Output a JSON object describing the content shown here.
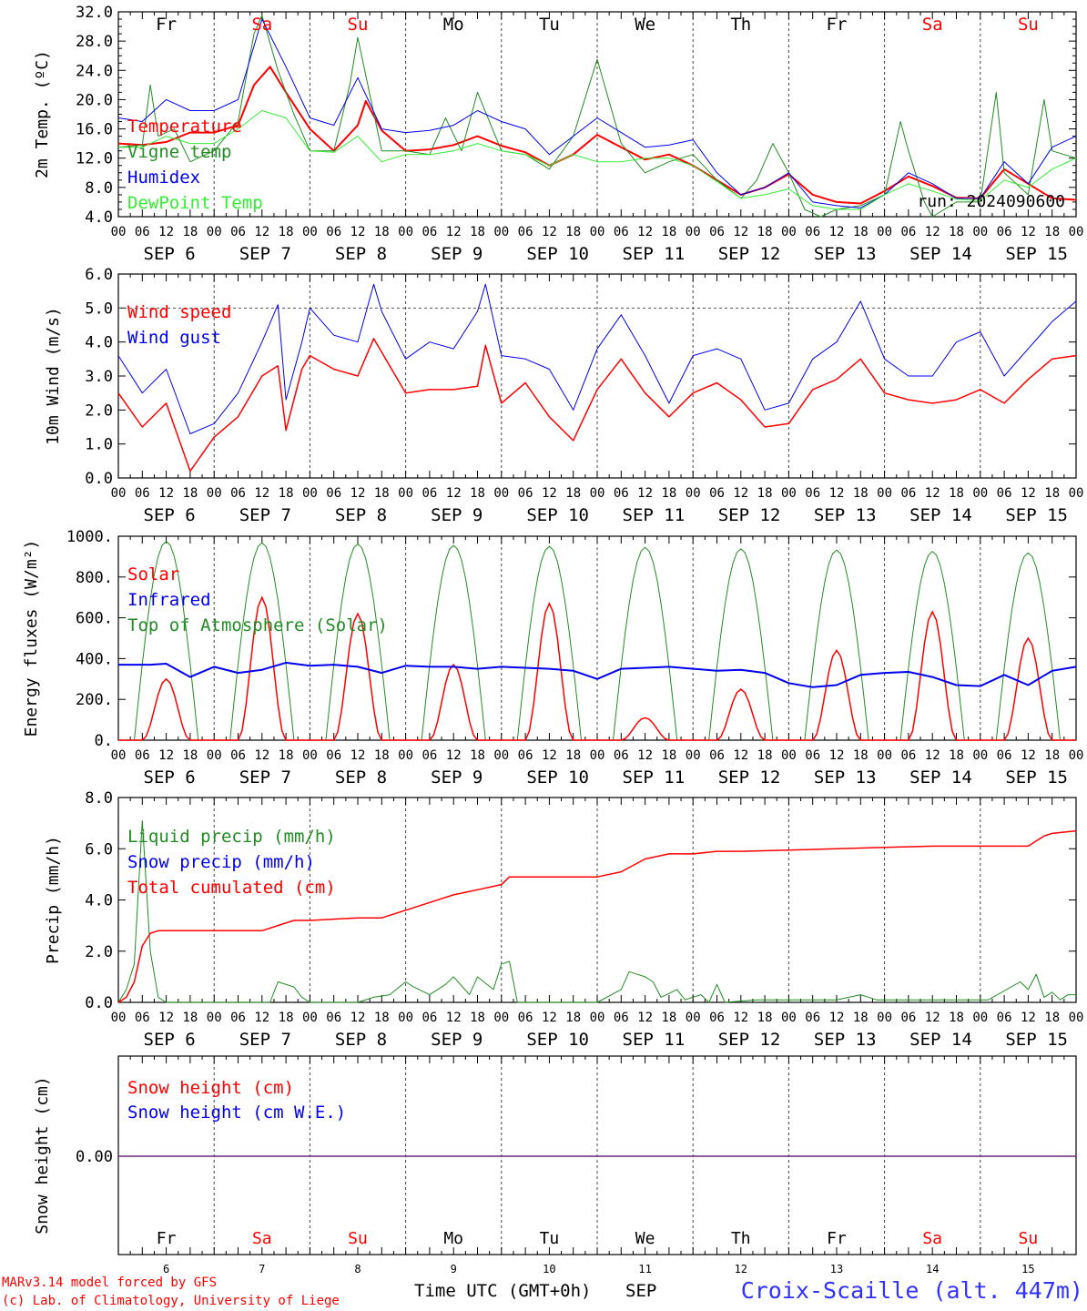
{
  "colors": {
    "red": "#ff0000",
    "green": "#228b22",
    "blue": "#0000ee",
    "lightgreen": "#33ee33",
    "purple": "#6a2a7a",
    "weekend": "#ff0000",
    "weekday": "#000000",
    "station": "#3030ff"
  },
  "days": [
    {
      "name": "Fr",
      "date": "SEP  6",
      "num": "6",
      "weekend": false
    },
    {
      "name": "Sa",
      "date": "SEP  7",
      "num": "7",
      "weekend": true
    },
    {
      "name": "Su",
      "date": "SEP  8",
      "num": "8",
      "weekend": true
    },
    {
      "name": "Mo",
      "date": "SEP  9",
      "num": "9",
      "weekend": false
    },
    {
      "name": "Tu",
      "date": "SEP 10",
      "num": "10",
      "weekend": false
    },
    {
      "name": "We",
      "date": "SEP 11",
      "num": "11",
      "weekend": false
    },
    {
      "name": "Th",
      "date": "SEP 12",
      "num": "12",
      "weekend": false
    },
    {
      "name": "Fr",
      "date": "SEP 13",
      "num": "13",
      "weekend": false
    },
    {
      "name": "Sa",
      "date": "SEP 14",
      "num": "14",
      "weekend": true
    },
    {
      "name": "Su",
      "date": "SEP 15",
      "num": "15",
      "weekend": true
    }
  ],
  "hour_ticks": [
    "00",
    "06",
    "12",
    "18"
  ],
  "footer": {
    "credit1": "MARv3.14 model forced by GFS",
    "credit2": "(c) Lab. of Climatology, University of Liege",
    "xlabel": "Time UTC (GMT+0h)",
    "month": "SEP",
    "station": "Croix-Scaille (alt. 447m)"
  },
  "chart_data": [
    {
      "type": "line",
      "id": "temp",
      "ylabel": "2m Temp. (ºC)",
      "ylim": [
        4,
        32
      ],
      "yticks": [
        4,
        8,
        12,
        16,
        20,
        24,
        28,
        32
      ],
      "ytick_labels": [
        "4.0",
        "8.0",
        "12.0",
        "16.0",
        "20.0",
        "24.0",
        "28.0",
        "32.0"
      ],
      "x_unit": "hours since 2024-09-06 00 UTC",
      "annotation": "run: 2024090600",
      "legend": [
        "Temperature",
        "Vigne temp",
        "Humidex",
        "DewPoint Temp"
      ],
      "series": [
        {
          "name": "Temperature",
          "color": "red",
          "width": 2,
          "x": [
            0,
            6,
            12,
            18,
            24,
            30,
            34,
            38,
            42,
            48,
            54,
            60,
            62,
            66,
            72,
            78,
            84,
            90,
            96,
            102,
            108,
            114,
            120,
            126,
            132,
            138,
            144,
            150,
            156,
            162,
            168,
            174,
            180,
            186,
            192,
            198,
            204,
            210,
            216,
            222,
            228,
            234,
            240
          ],
          "y": [
            14.0,
            13.8,
            14.2,
            15.5,
            15.5,
            16.5,
            22.0,
            24.5,
            21.0,
            16.0,
            13.0,
            16.5,
            19.8,
            15.8,
            13.0,
            13.2,
            13.8,
            15.0,
            13.7,
            12.8,
            11.0,
            12.5,
            15.2,
            13.5,
            11.8,
            12.5,
            11.0,
            9.0,
            7.0,
            8.0,
            9.8,
            7.0,
            6.0,
            5.8,
            7.5,
            9.5,
            8.2,
            6.6,
            6.5,
            10.5,
            8.5,
            6.5,
            6.3
          ]
        },
        {
          "name": "Vigne temp",
          "color": "green",
          "width": 1,
          "x": [
            0,
            6,
            8,
            10,
            14,
            18,
            24,
            30,
            34,
            36,
            40,
            44,
            48,
            54,
            58,
            60,
            66,
            72,
            78,
            82,
            86,
            90,
            96,
            102,
            108,
            114,
            120,
            126,
            132,
            138,
            144,
            150,
            156,
            160,
            164,
            168,
            172,
            176,
            180,
            186,
            192,
            196,
            198,
            202,
            204,
            210,
            216,
            220,
            222,
            228,
            232,
            234,
            240
          ],
          "y": [
            13.5,
            13.8,
            22.0,
            15.0,
            16.0,
            11.5,
            13.0,
            17.0,
            29.0,
            31.5,
            24.0,
            18.0,
            13.0,
            13.0,
            22.0,
            28.5,
            13.0,
            13.0,
            12.5,
            17.5,
            13.0,
            21.0,
            13.0,
            12.5,
            10.5,
            15.0,
            25.5,
            14.0,
            10.0,
            11.5,
            12.5,
            9.0,
            6.5,
            9.0,
            14.0,
            10.0,
            5.0,
            4.0,
            5.0,
            5.5,
            7.0,
            17.0,
            13.0,
            6.0,
            4.0,
            6.0,
            6.0,
            21.0,
            10.0,
            7.0,
            20.0,
            13.0,
            12.0
          ]
        },
        {
          "name": "Humidex",
          "color": "blue",
          "width": 1,
          "x": [
            0,
            6,
            12,
            18,
            24,
            30,
            36,
            42,
            48,
            54,
            60,
            66,
            72,
            78,
            84,
            90,
            96,
            102,
            108,
            114,
            120,
            126,
            132,
            138,
            144,
            150,
            156,
            162,
            168,
            174,
            180,
            186,
            192,
            198,
            204,
            210,
            216,
            222,
            228,
            234,
            240
          ],
          "y": [
            17.5,
            17.0,
            20.0,
            18.5,
            18.5,
            20.0,
            31.0,
            24.5,
            17.5,
            16.5,
            23.0,
            16.0,
            15.5,
            15.8,
            16.5,
            18.5,
            17.0,
            16.0,
            12.5,
            15.0,
            17.5,
            15.5,
            13.5,
            13.8,
            14.5,
            10.0,
            7.0,
            8.0,
            10.0,
            6.0,
            5.5,
            5.2,
            7.0,
            10.0,
            8.5,
            6.5,
            6.5,
            11.5,
            8.5,
            13.5,
            15.0
          ]
        },
        {
          "name": "DewPoint Temp",
          "color": "lightgreen",
          "width": 1,
          "x": [
            0,
            6,
            12,
            18,
            24,
            30,
            36,
            42,
            48,
            54,
            60,
            66,
            72,
            78,
            84,
            90,
            96,
            102,
            108,
            114,
            120,
            126,
            132,
            138,
            144,
            150,
            156,
            162,
            168,
            174,
            180,
            186,
            192,
            198,
            204,
            210,
            216,
            222,
            228,
            234,
            240
          ],
          "y": [
            13.5,
            13.5,
            15.0,
            14.0,
            14.0,
            16.0,
            18.5,
            17.5,
            13.0,
            12.8,
            15.0,
            11.5,
            12.5,
            12.5,
            13.0,
            14.0,
            13.0,
            12.5,
            11.0,
            12.5,
            11.5,
            11.5,
            12.0,
            12.0,
            11.0,
            8.8,
            6.5,
            7.0,
            7.8,
            5.5,
            5.0,
            5.0,
            7.0,
            8.5,
            7.5,
            6.4,
            6.2,
            9.0,
            8.0,
            10.5,
            12.0
          ]
        }
      ]
    },
    {
      "type": "line",
      "id": "wind",
      "ylabel": "10m Wind (m/s)",
      "ylim": [
        0,
        6
      ],
      "yticks": [
        0,
        1,
        2,
        3,
        4,
        5,
        6
      ],
      "ytick_labels": [
        "0.0",
        "1.0",
        "2.0",
        "3.0",
        "4.0",
        "5.0",
        "6.0"
      ],
      "reference_line": 5.0,
      "legend": [
        "Wind speed",
        "Wind gust"
      ],
      "series": [
        {
          "name": "Wind speed",
          "color": "red",
          "width": 1.5,
          "x": [
            0,
            6,
            12,
            18,
            24,
            30,
            36,
            40,
            42,
            46,
            48,
            54,
            60,
            64,
            66,
            72,
            78,
            84,
            90,
            92,
            96,
            102,
            108,
            114,
            120,
            126,
            132,
            138,
            144,
            150,
            156,
            162,
            168,
            174,
            180,
            186,
            192,
            198,
            204,
            210,
            216,
            222,
            228,
            234,
            240
          ],
          "y": [
            2.5,
            1.5,
            2.2,
            0.2,
            1.2,
            1.8,
            3.0,
            3.3,
            1.4,
            3.2,
            3.6,
            3.2,
            3.0,
            4.1,
            3.7,
            2.5,
            2.6,
            2.6,
            2.7,
            3.9,
            2.2,
            2.8,
            1.8,
            1.1,
            2.6,
            3.5,
            2.5,
            1.8,
            2.5,
            2.8,
            2.3,
            1.5,
            1.6,
            2.6,
            2.9,
            3.5,
            2.5,
            2.3,
            2.2,
            2.3,
            2.6,
            2.2,
            2.9,
            3.5,
            3.6
          ]
        },
        {
          "name": "Wind gust",
          "color": "blue",
          "width": 1,
          "x": [
            0,
            6,
            12,
            18,
            24,
            30,
            36,
            40,
            42,
            46,
            48,
            54,
            60,
            64,
            66,
            72,
            78,
            84,
            90,
            92,
            96,
            102,
            108,
            114,
            120,
            126,
            132,
            138,
            144,
            150,
            156,
            162,
            168,
            174,
            180,
            186,
            192,
            198,
            204,
            210,
            216,
            222,
            228,
            234,
            240
          ],
          "y": [
            3.6,
            2.5,
            3.2,
            1.3,
            1.6,
            2.5,
            4.0,
            5.1,
            2.3,
            4.0,
            5.0,
            4.2,
            4.0,
            5.7,
            4.9,
            3.5,
            4.0,
            3.8,
            4.9,
            5.7,
            3.6,
            3.5,
            3.2,
            2.0,
            3.8,
            4.8,
            3.6,
            2.2,
            3.6,
            3.8,
            3.5,
            2.0,
            2.2,
            3.5,
            4.0,
            5.2,
            3.5,
            3.0,
            3.0,
            4.0,
            4.3,
            3.0,
            3.8,
            4.6,
            5.2
          ]
        }
      ]
    },
    {
      "type": "line",
      "id": "energy",
      "ylabel": "Energy fluxes (W/m²)",
      "ylim": [
        0,
        1000
      ],
      "yticks": [
        0,
        200,
        400,
        600,
        800,
        1000
      ],
      "ytick_labels": [
        "0.",
        "200.",
        "400.",
        "600.",
        "800.",
        "1000."
      ],
      "legend": [
        "Solar",
        "Infrared",
        "Top of Atmosphere (Solar)"
      ],
      "toa_peaks": [
        975,
        968,
        962,
        955,
        950,
        945,
        938,
        932,
        925,
        918
      ],
      "solar_peaks": [
        300,
        700,
        620,
        370,
        670,
        110,
        250,
        440,
        630,
        500
      ],
      "series": [
        {
          "name": "Infrared",
          "color": "blue",
          "width": 2,
          "x": [
            0,
            8,
            12,
            18,
            24,
            30,
            36,
            42,
            48,
            54,
            60,
            66,
            72,
            78,
            84,
            90,
            96,
            102,
            108,
            114,
            120,
            126,
            132,
            138,
            144,
            150,
            156,
            162,
            168,
            174,
            180,
            186,
            192,
            198,
            204,
            210,
            216,
            222,
            228,
            234,
            240
          ],
          "y": [
            370,
            370,
            375,
            310,
            360,
            330,
            345,
            380,
            365,
            370,
            360,
            330,
            365,
            360,
            360,
            350,
            360,
            355,
            350,
            340,
            300,
            350,
            355,
            360,
            350,
            340,
            345,
            330,
            280,
            260,
            270,
            320,
            330,
            335,
            310,
            270,
            265,
            320,
            270,
            340,
            360
          ]
        }
      ]
    },
    {
      "type": "line",
      "id": "precip",
      "ylabel": "Precip (mm/h)",
      "ylim": [
        0,
        8
      ],
      "yticks": [
        0,
        2,
        4,
        6,
        8
      ],
      "ytick_labels": [
        "0.0",
        "2.0",
        "4.0",
        "6.0",
        "8.0"
      ],
      "legend": [
        "Liquid precip (mm/h)",
        "Snow precip (mm/h)",
        "Total cumulated (cm)"
      ],
      "series": [
        {
          "name": "Liquid precip (mm/h)",
          "color": "green",
          "width": 1,
          "x": [
            0,
            2,
            4,
            6,
            8,
            10,
            12,
            24,
            38,
            40,
            44,
            46,
            48,
            60,
            64,
            68,
            72,
            74,
            78,
            82,
            84,
            88,
            90,
            94,
            96,
            98,
            100,
            102,
            120,
            126,
            128,
            132,
            134,
            136,
            140,
            142,
            146,
            148,
            150,
            152,
            160,
            180,
            186,
            190,
            196,
            218,
            226,
            228,
            230,
            232,
            234,
            236,
            238,
            240
          ],
          "y": [
            0,
            0.5,
            1.5,
            7.1,
            2.0,
            0.2,
            0,
            0,
            0,
            0.8,
            0.6,
            0.2,
            0,
            0,
            0.2,
            0.3,
            0.8,
            0.6,
            0.3,
            0.7,
            1.0,
            0.3,
            1.0,
            0.5,
            1.5,
            1.6,
            0,
            0,
            0,
            0.5,
            1.2,
            1.0,
            0.8,
            0.2,
            0.5,
            0.1,
            0.3,
            0.0,
            0.7,
            0.0,
            0.1,
            0.1,
            0.3,
            0.1,
            0.1,
            0.1,
            0.8,
            0.5,
            1.1,
            0.2,
            0.4,
            0.1,
            0.3,
            0.3
          ]
        },
        {
          "name": "Total cumulated (cm)",
          "color": "red",
          "width": 1.5,
          "x": [
            0,
            2,
            4,
            6,
            8,
            10,
            12,
            24,
            36,
            40,
            44,
            48,
            60,
            66,
            72,
            78,
            84,
            90,
            96,
            98,
            100,
            108,
            120,
            126,
            132,
            138,
            144,
            150,
            156,
            168,
            180,
            192,
            204,
            216,
            228,
            230,
            232,
            234,
            240
          ],
          "y": [
            0,
            0.2,
            0.8,
            2.2,
            2.7,
            2.8,
            2.8,
            2.8,
            2.8,
            3.0,
            3.2,
            3.2,
            3.3,
            3.3,
            3.6,
            3.9,
            4.2,
            4.4,
            4.6,
            4.9,
            4.9,
            4.9,
            4.9,
            5.1,
            5.6,
            5.8,
            5.8,
            5.9,
            5.9,
            5.95,
            6.0,
            6.05,
            6.1,
            6.1,
            6.1,
            6.3,
            6.5,
            6.6,
            6.7
          ]
        }
      ]
    },
    {
      "type": "line",
      "id": "snow",
      "ylabel": "Snow height (cm)",
      "yticks": [
        0
      ],
      "ytick_labels": [
        "0.00"
      ],
      "legend": [
        "Snow height (cm)",
        "Snow height (cm W.E.)"
      ],
      "series": [
        {
          "name": "Snow height (cm)",
          "color": "purple",
          "width": 1.5,
          "x": [
            0,
            240
          ],
          "y": [
            0,
            0
          ]
        }
      ]
    }
  ]
}
